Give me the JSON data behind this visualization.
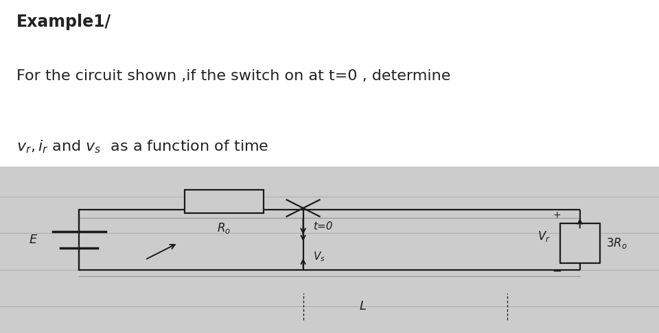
{
  "bg_color": "#ffffff",
  "circuit_bg": "#d8d8d8",
  "line_paper_bg": "#e8e8e8",
  "title_line1": "Example1/",
  "title_line2": "For the circuit shown ,if the switch on at t=0 , determine",
  "font_size_title": 16,
  "font_size_body": 16,
  "line_color": "#1a1a1a",
  "line_width": 1.6,
  "fig_width": 9.6,
  "fig_height": 4.86,
  "dpi": 100
}
